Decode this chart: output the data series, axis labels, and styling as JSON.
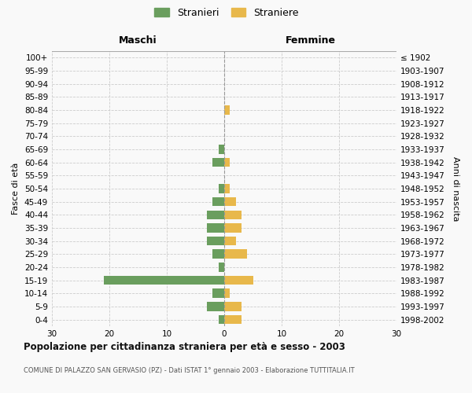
{
  "age_groups": [
    "100+",
    "95-99",
    "90-94",
    "85-89",
    "80-84",
    "75-79",
    "70-74",
    "65-69",
    "60-64",
    "55-59",
    "50-54",
    "45-49",
    "40-44",
    "35-39",
    "30-34",
    "25-29",
    "20-24",
    "15-19",
    "10-14",
    "5-9",
    "0-4"
  ],
  "birth_years": [
    "≤ 1902",
    "1903-1907",
    "1908-1912",
    "1913-1917",
    "1918-1922",
    "1923-1927",
    "1928-1932",
    "1933-1937",
    "1938-1942",
    "1943-1947",
    "1948-1952",
    "1953-1957",
    "1958-1962",
    "1963-1967",
    "1968-1972",
    "1973-1977",
    "1978-1982",
    "1983-1987",
    "1988-1992",
    "1993-1997",
    "1998-2002"
  ],
  "stranieri": [
    0,
    0,
    0,
    0,
    0,
    0,
    0,
    1,
    2,
    0,
    1,
    2,
    3,
    3,
    3,
    2,
    1,
    21,
    2,
    3,
    1
  ],
  "straniere": [
    0,
    0,
    0,
    0,
    1,
    0,
    0,
    0,
    1,
    0,
    1,
    2,
    3,
    3,
    2,
    4,
    0,
    5,
    1,
    3,
    3
  ],
  "color_stranieri": "#6a9e5e",
  "color_straniere": "#e8b84b",
  "xlim": 30,
  "xlabel_left": "Maschi",
  "xlabel_right": "Femmine",
  "ylabel_left": "Fasce di età",
  "ylabel_right": "Anni di nascita",
  "title": "Popolazione per cittadinanza straniera per età e sesso - 2003",
  "subtitle": "COMUNE DI PALAZZO SAN GERVASIO (PZ) - Dati ISTAT 1° gennaio 2003 - Elaborazione TUTTITALIA.IT",
  "legend_stranieri": "Stranieri",
  "legend_straniere": "Straniere",
  "background_color": "#f9f9f9",
  "grid_color": "#cccccc"
}
